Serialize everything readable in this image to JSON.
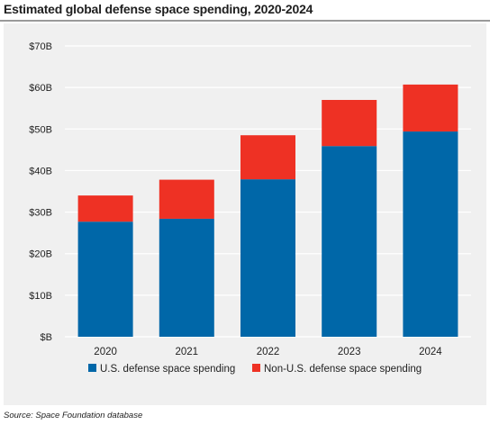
{
  "title": "Estimated global defense space spending, 2020-2024",
  "source": "Source: Space Foundation database",
  "chart_data": {
    "type": "bar",
    "stacked": true,
    "categories": [
      "2020",
      "2021",
      "2022",
      "2023",
      "2024"
    ],
    "series": [
      {
        "name": "U.S. defense space spending",
        "color": "#0067a8",
        "values": [
          27.7,
          28.4,
          37.9,
          45.9,
          49.4
        ]
      },
      {
        "name": "Non-U.S. defense space spending",
        "color": "#ee3124",
        "values": [
          6.3,
          9.4,
          10.6,
          11.1,
          11.3
        ]
      }
    ],
    "y_ticks": [
      "$B",
      "$10B",
      "$20B",
      "$30B",
      "$40B",
      "$50B",
      "$60B",
      "$70B"
    ],
    "ylim": [
      0,
      70
    ],
    "grid": true,
    "legend": "bottom"
  }
}
